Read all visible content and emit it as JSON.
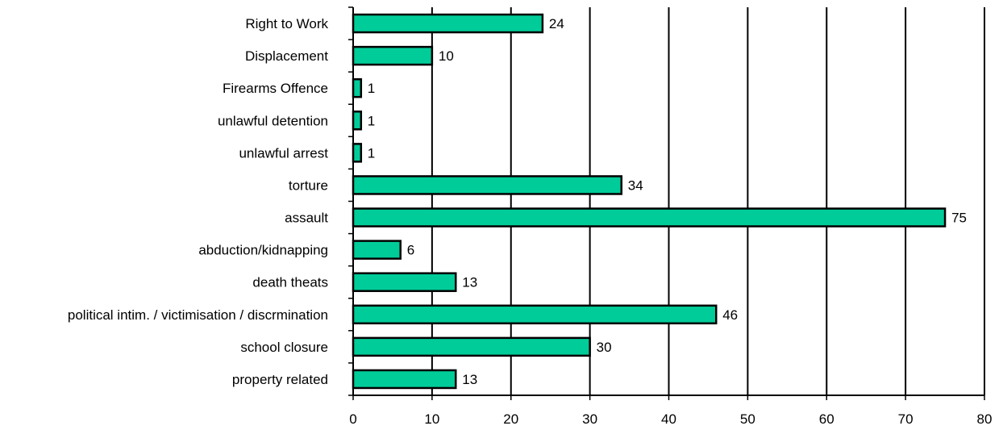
{
  "chart_data": {
    "type": "bar",
    "orientation": "horizontal",
    "categories": [
      "Right to Work",
      "Displacement",
      "Firearms Offence",
      "unlawful detention",
      "unlawful arrest",
      "torture",
      "assault",
      "abduction/kidnapping",
      "death theats",
      "political intim. / victimisation / discrmination",
      "school closure",
      "property related"
    ],
    "values": [
      24,
      10,
      1,
      1,
      1,
      34,
      75,
      6,
      13,
      46,
      30,
      13
    ],
    "xlim": [
      0,
      80
    ],
    "xticks": [
      0,
      10,
      20,
      30,
      40,
      50,
      60,
      70,
      80
    ],
    "grid": "vertical",
    "legend": "none",
    "title": "",
    "xlabel": "",
    "ylabel": "",
    "colors": {
      "bar_fill": "#00CC99",
      "bar_stroke": "#000000",
      "grid": "#000000"
    }
  }
}
